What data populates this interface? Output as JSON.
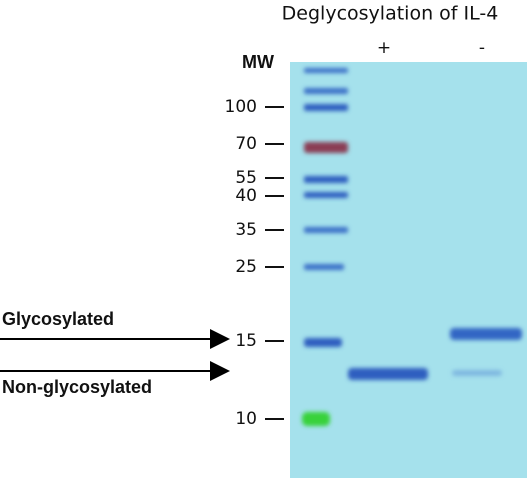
{
  "header": {
    "title": "Deglycosylation of IL-4"
  },
  "lanes": {
    "marker": "MW",
    "treated": "+",
    "untreated": "-"
  },
  "mw_markers": [
    "100",
    "70",
    "55",
    "40",
    "35",
    "25",
    "15",
    "10"
  ],
  "annotations": {
    "upper": "Glycosylated",
    "lower": "Non-glycosylated"
  }
}
